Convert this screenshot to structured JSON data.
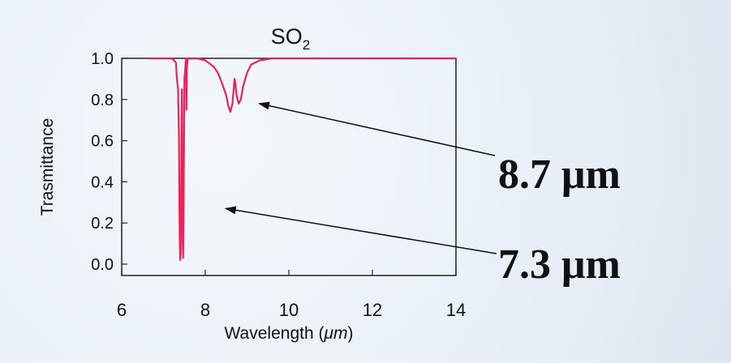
{
  "chart_data": {
    "type": "line",
    "title_main": "SO",
    "title_sub": "2",
    "xlabel_pre": "Wavelength (",
    "xlabel_unit": "μm",
    "xlabel_post": ")",
    "ylabel": "Trasmittance",
    "xlim": [
      6,
      14
    ],
    "ylim": [
      0,
      1.05
    ],
    "xticks": [
      6,
      8,
      10,
      12,
      14
    ],
    "xtick_labels": [
      "6",
      "8",
      "10",
      "12",
      "14"
    ],
    "yticks": [
      0.0,
      0.2,
      0.4,
      0.6,
      0.8,
      1.0
    ],
    "ytick_labels": [
      "0.0",
      "0.2",
      "0.4",
      "0.6",
      "0.8",
      "1.0"
    ],
    "grid": false,
    "line_color": "#e8245a",
    "series": [
      {
        "x": [
          6.65,
          7.2,
          7.3,
          7.32,
          7.35,
          7.37,
          7.38,
          7.39,
          7.4,
          7.41,
          7.42,
          7.43,
          7.44,
          7.45,
          7.46,
          7.47,
          7.48,
          7.5,
          7.52,
          7.54,
          7.55,
          7.56,
          7.58,
          7.6,
          7.7,
          7.8,
          8.0,
          8.2,
          8.3,
          8.4,
          8.5,
          8.55,
          8.6,
          8.65,
          8.68,
          8.7,
          8.72,
          8.75,
          8.8,
          8.85,
          8.9,
          9.0,
          9.1,
          9.3,
          9.6,
          10.0,
          11.0,
          12.0,
          13.0,
          14.0
        ],
        "y": [
          1.0,
          1.0,
          0.98,
          0.9,
          0.85,
          0.6,
          0.3,
          0.1,
          0.02,
          0.05,
          0.2,
          0.6,
          0.85,
          0.5,
          0.1,
          0.03,
          0.2,
          0.9,
          0.95,
          1.0,
          0.75,
          0.95,
          1.0,
          1.0,
          1.0,
          1.0,
          0.99,
          0.96,
          0.93,
          0.88,
          0.82,
          0.77,
          0.74,
          0.78,
          0.85,
          0.9,
          0.88,
          0.82,
          0.78,
          0.8,
          0.86,
          0.93,
          0.97,
          0.99,
          1.0,
          1.0,
          1.0,
          1.0,
          1.0,
          1.0
        ]
      }
    ],
    "annotations": [
      {
        "text": "8.7  μm",
        "arrow_to": [
          9.3,
          0.78
        ]
      },
      {
        "text": "7.3  μm",
        "arrow_to": [
          8.5,
          0.27
        ]
      }
    ]
  }
}
